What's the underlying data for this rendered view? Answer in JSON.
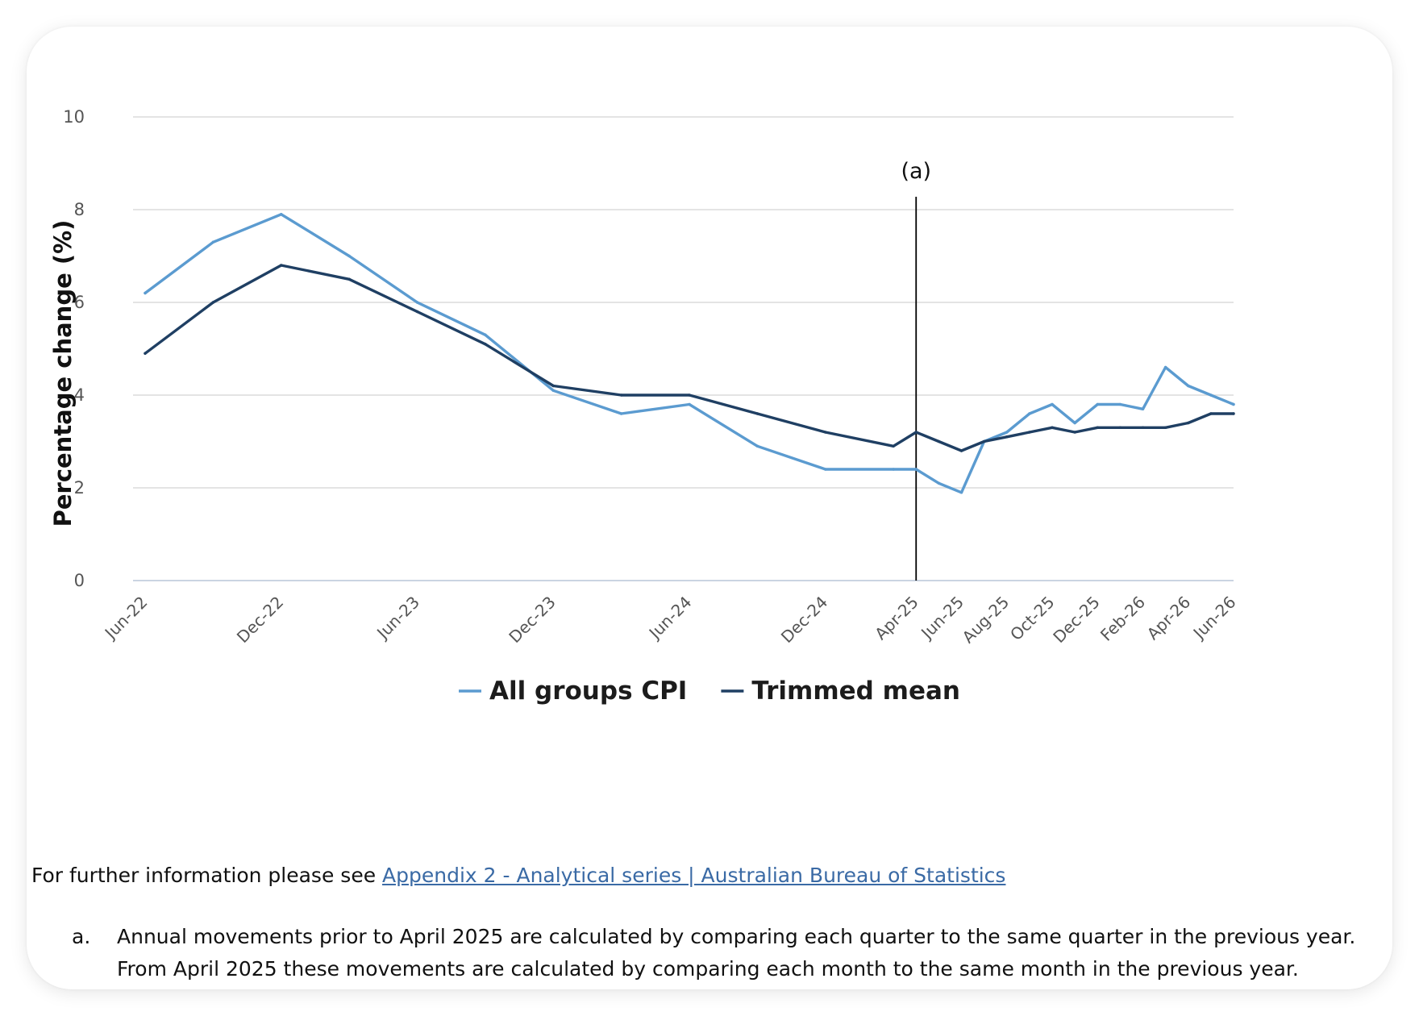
{
  "chart_data": {
    "type": "line",
    "ylabel": "Percentage change (%)",
    "xlabel": "",
    "ylim": [
      0,
      10
    ],
    "yticks": [
      0,
      2,
      4,
      6,
      8,
      10
    ],
    "grid": true,
    "legend_position": "bottom",
    "x_tick_labels": [
      "Jun-22",
      "Dec-22",
      "Jun-23",
      "Dec-23",
      "Jun-24",
      "Dec-24",
      "Apr-25",
      "Jun-25",
      "Aug-25",
      "Oct-25",
      "Dec-25",
      "Feb-26",
      "Apr-26",
      "Jun-26"
    ],
    "annotation": {
      "label": "(a)",
      "x": "Apr-25"
    },
    "series": [
      {
        "name": "All groups CPI",
        "color": "#5b9bd0",
        "points": [
          {
            "x": "Jun-22",
            "y": 6.2
          },
          {
            "x": "Sep-22",
            "y": 7.3
          },
          {
            "x": "Dec-22",
            "y": 7.9
          },
          {
            "x": "Mar-23",
            "y": 7.0
          },
          {
            "x": "Jun-23",
            "y": 6.0
          },
          {
            "x": "Sep-23",
            "y": 5.3
          },
          {
            "x": "Dec-23",
            "y": 4.1
          },
          {
            "x": "Mar-24",
            "y": 3.6
          },
          {
            "x": "Jun-24",
            "y": 3.8
          },
          {
            "x": "Sep-24",
            "y": 2.9
          },
          {
            "x": "Dec-24",
            "y": 2.4
          },
          {
            "x": "Mar-25",
            "y": 2.4
          },
          {
            "x": "Apr-25",
            "y": 2.4
          },
          {
            "x": "May-25",
            "y": 2.1
          },
          {
            "x": "Jun-25",
            "y": 1.9
          },
          {
            "x": "Jul-25",
            "y": 3.0
          },
          {
            "x": "Aug-25",
            "y": 3.2
          },
          {
            "x": "Sep-25",
            "y": 3.6
          },
          {
            "x": "Oct-25",
            "y": 3.8
          },
          {
            "x": "Nov-25",
            "y": 3.4
          },
          {
            "x": "Dec-25",
            "y": 3.8
          },
          {
            "x": "Jan-26",
            "y": 3.8
          },
          {
            "x": "Feb-26",
            "y": 3.7
          },
          {
            "x": "Mar-26",
            "y": 4.6
          },
          {
            "x": "Apr-26",
            "y": 4.2
          },
          {
            "x": "May-26",
            "y": 4.0
          },
          {
            "x": "Jun-26",
            "y": 3.8
          }
        ]
      },
      {
        "name": "Trimmed mean",
        "color": "#1f3f63",
        "points": [
          {
            "x": "Jun-22",
            "y": 4.9
          },
          {
            "x": "Sep-22",
            "y": 6.0
          },
          {
            "x": "Dec-22",
            "y": 6.8
          },
          {
            "x": "Mar-23",
            "y": 6.5
          },
          {
            "x": "Jun-23",
            "y": 5.8
          },
          {
            "x": "Sep-23",
            "y": 5.1
          },
          {
            "x": "Dec-23",
            "y": 4.2
          },
          {
            "x": "Mar-24",
            "y": 4.0
          },
          {
            "x": "Jun-24",
            "y": 4.0
          },
          {
            "x": "Sep-24",
            "y": 3.6
          },
          {
            "x": "Dec-24",
            "y": 3.2
          },
          {
            "x": "Mar-25",
            "y": 2.9
          },
          {
            "x": "Apr-25",
            "y": 3.2
          },
          {
            "x": "May-25",
            "y": 3.0
          },
          {
            "x": "Jun-25",
            "y": 2.8
          },
          {
            "x": "Jul-25",
            "y": 3.0
          },
          {
            "x": "Aug-25",
            "y": 3.1
          },
          {
            "x": "Sep-25",
            "y": 3.2
          },
          {
            "x": "Oct-25",
            "y": 3.3
          },
          {
            "x": "Nov-25",
            "y": 3.2
          },
          {
            "x": "Dec-25",
            "y": 3.3
          },
          {
            "x": "Jan-26",
            "y": 3.3
          },
          {
            "x": "Feb-26",
            "y": 3.3
          },
          {
            "x": "Mar-26",
            "y": 3.3
          },
          {
            "x": "Apr-26",
            "y": 3.4
          },
          {
            "x": "May-26",
            "y": 3.6
          },
          {
            "x": "Jun-26",
            "y": 3.6
          }
        ]
      }
    ]
  },
  "info": {
    "prefix": "For further information please see ",
    "link_text": "Appendix 2 - Analytical series | Australian Bureau of Statistics"
  },
  "footnote": {
    "marker": "a.",
    "text": "Annual movements prior to April 2025 are calculated by comparing each quarter to the same quarter in the previous year. From April 2025 these movements are calculated by comparing each month to the same month in the previous year."
  }
}
